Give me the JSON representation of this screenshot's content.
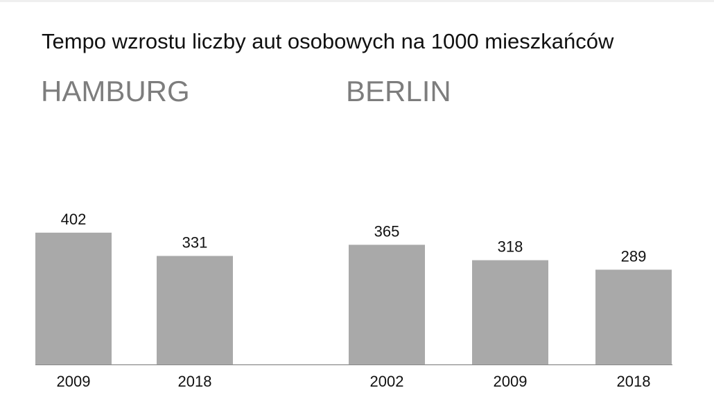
{
  "chart_data": {
    "type": "bar",
    "title": "Tempo wzrostu liczby aut osobowych na 1000 mieszkańców",
    "bar_color": "#a9a9a9",
    "baseline_color": "#8a8a8a",
    "groups": [
      {
        "name": "HAMBURG",
        "categories": [
          "2009",
          "2018"
        ],
        "values": [
          402,
          331
        ]
      },
      {
        "name": "BERLIN",
        "categories": [
          "2002",
          "2009",
          "2018"
        ],
        "values": [
          365,
          318,
          289
        ]
      }
    ],
    "grid": false,
    "legend": "none"
  }
}
